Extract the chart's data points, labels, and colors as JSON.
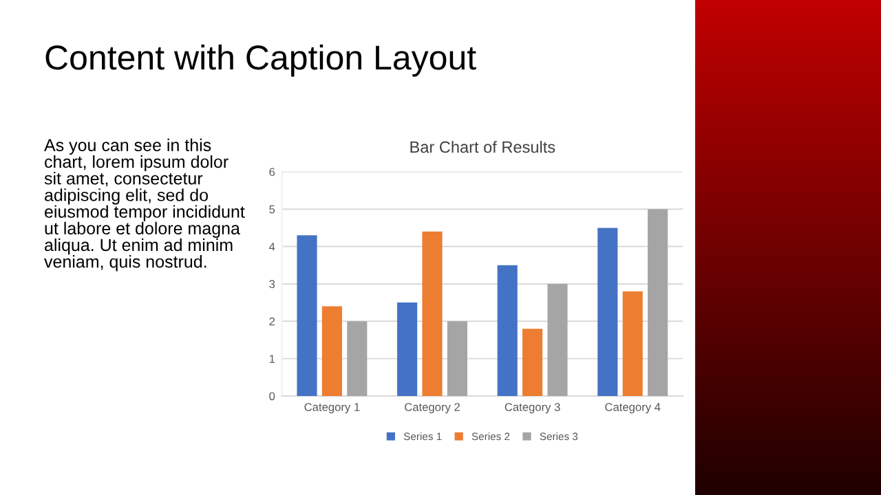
{
  "chart_data": {
    "type": "bar",
    "title": "Bar Chart of Results",
    "categories": [
      "Category 1",
      "Category 2",
      "Category 3",
      "Category 4"
    ],
    "series": [
      {
        "name": "Series 1",
        "color": "#4472c4",
        "values": [
          4.3,
          2.5,
          3.5,
          4.5
        ]
      },
      {
        "name": "Series 2",
        "color": "#ed7d31",
        "values": [
          2.4,
          4.4,
          1.8,
          2.8
        ]
      },
      {
        "name": "Series 3",
        "color": "#a5a5a5",
        "values": [
          2,
          2,
          3,
          5
        ]
      }
    ],
    "ylim": [
      0,
      6
    ],
    "yticks": [
      0,
      1,
      2,
      3,
      4,
      5,
      6
    ],
    "grid": "y",
    "legend": "bottom",
    "annotations": [
      "Content with Caption Layout",
      "As you can see in this\nchart, lorem ipsum dolor\nsit amet, consectetur\nadipiscing elit, sed do\neiusmod tempor incididunt\nut labore et dolore magna\naliqua. Ut enim ad minim\nveniam, quis nostrud."
    ]
  }
}
